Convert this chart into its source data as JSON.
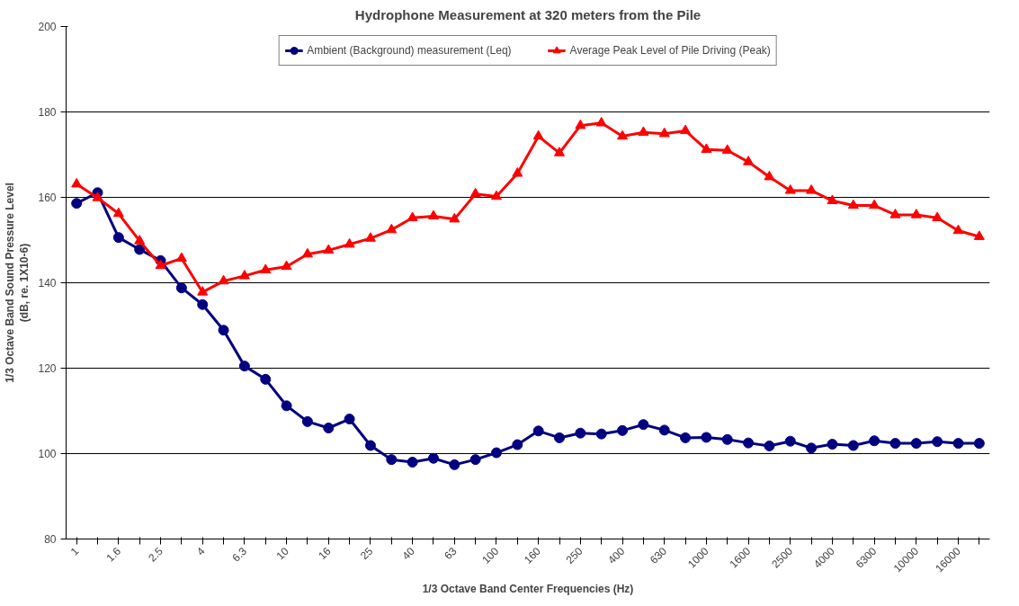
{
  "chart_data": {
    "type": "line",
    "title": "Hydrophone Measurement at 320 meters from the Pile",
    "xlabel": "1/3 Octave Band Center Frequencies (Hz)",
    "ylabel": "1/3 Octave Band Sound Pressure Level\n(dB, re. 1X10-6)",
    "categories": [
      "1",
      null,
      "1.6",
      null,
      "2.5",
      null,
      "4",
      null,
      "6.3",
      null,
      "10",
      null,
      "16",
      null,
      "25",
      null,
      "40",
      null,
      "63",
      null,
      "100",
      null,
      "160",
      null,
      "250",
      null,
      "400",
      null,
      "630",
      null,
      "1000",
      null,
      "1600",
      null,
      "2500",
      null,
      "4000",
      null,
      "6300",
      null,
      "10000",
      null,
      "16000",
      null
    ],
    "series": [
      {
        "name": "Ambient (Background) measurement (Leq)",
        "color": "#000080",
        "marker": "circle",
        "values": [
          158.6,
          161.1,
          150.6,
          147.8,
          145.2,
          138.8,
          134.9,
          128.9,
          120.5,
          117.4,
          111.2,
          107.5,
          106.0,
          108.1,
          101.9,
          98.6,
          98.0,
          98.9,
          97.4,
          98.6,
          100.2,
          102.1,
          105.3,
          103.7,
          104.8,
          104.6,
          105.4,
          106.8,
          105.5,
          103.7,
          103.8,
          103.3,
          102.5,
          101.8,
          102.9,
          101.3,
          102.2,
          101.9,
          103.0,
          102.4,
          102.4,
          102.8,
          102.4,
          102.4
        ]
      },
      {
        "name": "Average Peak Level of Pile Driving (Peak)",
        "color": "#ff0000",
        "marker": "triangle",
        "values": [
          163.1,
          159.9,
          156.2,
          149.8,
          144.0,
          145.7,
          137.8,
          140.4,
          141.6,
          143.0,
          143.8,
          146.7,
          147.6,
          149.0,
          150.4,
          152.4,
          155.2,
          155.6,
          154.9,
          160.8,
          160.2,
          165.6,
          174.3,
          170.4,
          176.8,
          177.4,
          174.3,
          175.2,
          174.9,
          175.6,
          171.2,
          171.0,
          168.3,
          164.8,
          161.6,
          161.6,
          159.2,
          158.1,
          158.1,
          155.9,
          155.9,
          155.2,
          152.2,
          150.8
        ]
      }
    ],
    "ylim": [
      80,
      200
    ],
    "yticks": [
      80,
      100,
      120,
      140,
      160,
      180,
      200
    ],
    "grid": "y",
    "legend": "top",
    "line_style": "solid"
  }
}
